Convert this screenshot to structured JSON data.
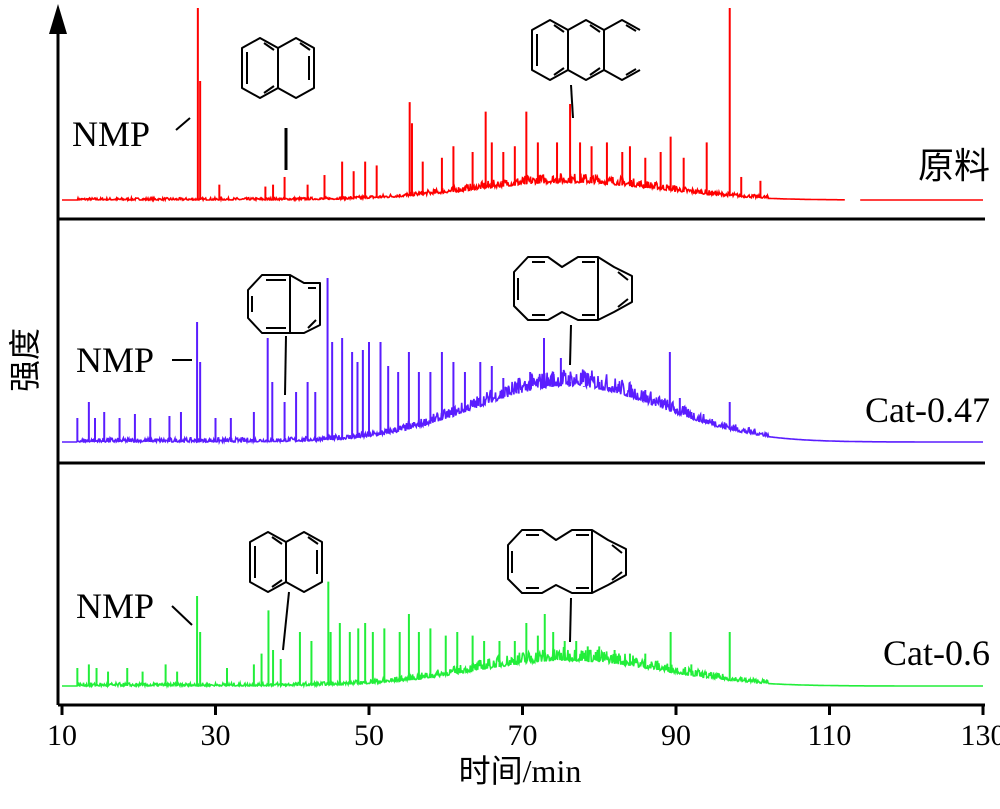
{
  "chart_data": {
    "type": "line",
    "title": "",
    "xlabel": "时间/min",
    "ylabel": "强度",
    "xlim": [
      10,
      130
    ],
    "x_ticks": [
      10,
      30,
      50,
      70,
      90,
      110,
      130
    ],
    "grid": false,
    "legend": "none",
    "annotation_text": "NMP",
    "series": [
      {
        "name": "原料",
        "color": "#ff0000",
        "baseline_end": 112,
        "peaks": [
          [
            27.7,
            1.0
          ],
          [
            28.0,
            0.62
          ],
          [
            30.5,
            0.08
          ],
          [
            36.5,
            0.07
          ],
          [
            37.5,
            0.08
          ],
          [
            39.0,
            0.12
          ],
          [
            42.0,
            0.08
          ],
          [
            44.2,
            0.13
          ],
          [
            46.5,
            0.2
          ],
          [
            48.0,
            0.15
          ],
          [
            49.5,
            0.2
          ],
          [
            51.0,
            0.18
          ],
          [
            55.3,
            0.51
          ],
          [
            55.6,
            0.4
          ],
          [
            57.0,
            0.2
          ],
          [
            59.5,
            0.22
          ],
          [
            61.0,
            0.28
          ],
          [
            63.5,
            0.25
          ],
          [
            65.2,
            0.46
          ],
          [
            66.0,
            0.3
          ],
          [
            67.5,
            0.25
          ],
          [
            69.0,
            0.28
          ],
          [
            70.5,
            0.46
          ],
          [
            72.0,
            0.3
          ],
          [
            74.5,
            0.3
          ],
          [
            76.2,
            0.5
          ],
          [
            77.5,
            0.3
          ],
          [
            79.0,
            0.28
          ],
          [
            81.0,
            0.3
          ],
          [
            83.0,
            0.25
          ],
          [
            84.0,
            0.28
          ],
          [
            86.0,
            0.22
          ],
          [
            88.0,
            0.25
          ],
          [
            89.3,
            0.33
          ],
          [
            91.0,
            0.22
          ],
          [
            94.0,
            0.3
          ],
          [
            97.0,
            1.0
          ],
          [
            98.5,
            0.12
          ],
          [
            101.0,
            0.1
          ]
        ]
      },
      {
        "name": "Cat-0.47",
        "color": "#5a1dff",
        "baseline_end": 130,
        "peaks": [
          [
            12.0,
            0.12
          ],
          [
            13.5,
            0.2
          ],
          [
            14.3,
            0.12
          ],
          [
            15.5,
            0.15
          ],
          [
            17.5,
            0.12
          ],
          [
            19.5,
            0.14
          ],
          [
            21.5,
            0.12
          ],
          [
            24.0,
            0.13
          ],
          [
            25.5,
            0.15
          ],
          [
            27.6,
            0.6
          ],
          [
            28.0,
            0.4
          ],
          [
            30.0,
            0.12
          ],
          [
            32.0,
            0.12
          ],
          [
            35.0,
            0.15
          ],
          [
            36.8,
            0.52
          ],
          [
            37.4,
            0.3
          ],
          [
            39.0,
            0.2
          ],
          [
            40.5,
            0.25
          ],
          [
            42.0,
            0.3
          ],
          [
            43.0,
            0.25
          ],
          [
            44.6,
            0.82
          ],
          [
            45.2,
            0.5
          ],
          [
            46.5,
            0.52
          ],
          [
            47.8,
            0.45
          ],
          [
            48.5,
            0.4
          ],
          [
            49.2,
            0.46
          ],
          [
            50.0,
            0.5
          ],
          [
            51.5,
            0.5
          ],
          [
            52.5,
            0.38
          ],
          [
            53.8,
            0.35
          ],
          [
            55.2,
            0.45
          ],
          [
            56.5,
            0.35
          ],
          [
            58.0,
            0.35
          ],
          [
            59.5,
            0.45
          ],
          [
            61.0,
            0.4
          ],
          [
            62.5,
            0.35
          ],
          [
            64.5,
            0.4
          ],
          [
            66.0,
            0.38
          ],
          [
            67.5,
            0.32
          ],
          [
            69.5,
            0.32
          ],
          [
            71.0,
            0.35
          ],
          [
            72.8,
            0.52
          ],
          [
            74.0,
            0.35
          ],
          [
            75.0,
            0.42
          ],
          [
            76.2,
            0.3
          ],
          [
            78.0,
            0.28
          ],
          [
            80.0,
            0.3
          ],
          [
            82.0,
            0.28
          ],
          [
            84.0,
            0.27
          ],
          [
            86.0,
            0.26
          ],
          [
            89.2,
            0.45
          ],
          [
            90.5,
            0.22
          ],
          [
            92.0,
            0.15
          ],
          [
            97.0,
            0.2
          ]
        ]
      },
      {
        "name": "Cat-0.6",
        "color": "#22ee3a",
        "baseline_end": 130,
        "peaks": [
          [
            12.0,
            0.1
          ],
          [
            13.5,
            0.12
          ],
          [
            14.5,
            0.1
          ],
          [
            16.0,
            0.08
          ],
          [
            18.5,
            0.1
          ],
          [
            20.5,
            0.08
          ],
          [
            23.5,
            0.12
          ],
          [
            25.0,
            0.08
          ],
          [
            27.6,
            0.5
          ],
          [
            28.0,
            0.3
          ],
          [
            31.5,
            0.1
          ],
          [
            35.0,
            0.12
          ],
          [
            36.0,
            0.18
          ],
          [
            36.9,
            0.42
          ],
          [
            37.5,
            0.2
          ],
          [
            38.5,
            0.15
          ],
          [
            41.0,
            0.3
          ],
          [
            42.5,
            0.25
          ],
          [
            44.7,
            0.58
          ],
          [
            45.0,
            0.3
          ],
          [
            46.2,
            0.35
          ],
          [
            47.5,
            0.3
          ],
          [
            48.6,
            0.32
          ],
          [
            49.5,
            0.35
          ],
          [
            50.5,
            0.3
          ],
          [
            52.0,
            0.32
          ],
          [
            54.0,
            0.3
          ],
          [
            55.2,
            0.4
          ],
          [
            56.5,
            0.3
          ],
          [
            58.0,
            0.32
          ],
          [
            60.0,
            0.28
          ],
          [
            61.5,
            0.3
          ],
          [
            63.5,
            0.28
          ],
          [
            65.0,
            0.25
          ],
          [
            67.0,
            0.25
          ],
          [
            69.0,
            0.25
          ],
          [
            70.5,
            0.35
          ],
          [
            72.0,
            0.28
          ],
          [
            72.9,
            0.4
          ],
          [
            74.0,
            0.3
          ],
          [
            75.5,
            0.25
          ],
          [
            77.0,
            0.25
          ],
          [
            78.5,
            0.22
          ],
          [
            80.0,
            0.22
          ],
          [
            82.0,
            0.2
          ],
          [
            84.0,
            0.18
          ],
          [
            86.0,
            0.18
          ],
          [
            89.3,
            0.3
          ],
          [
            92.0,
            0.12
          ],
          [
            97.0,
            0.3
          ]
        ]
      }
    ]
  }
}
